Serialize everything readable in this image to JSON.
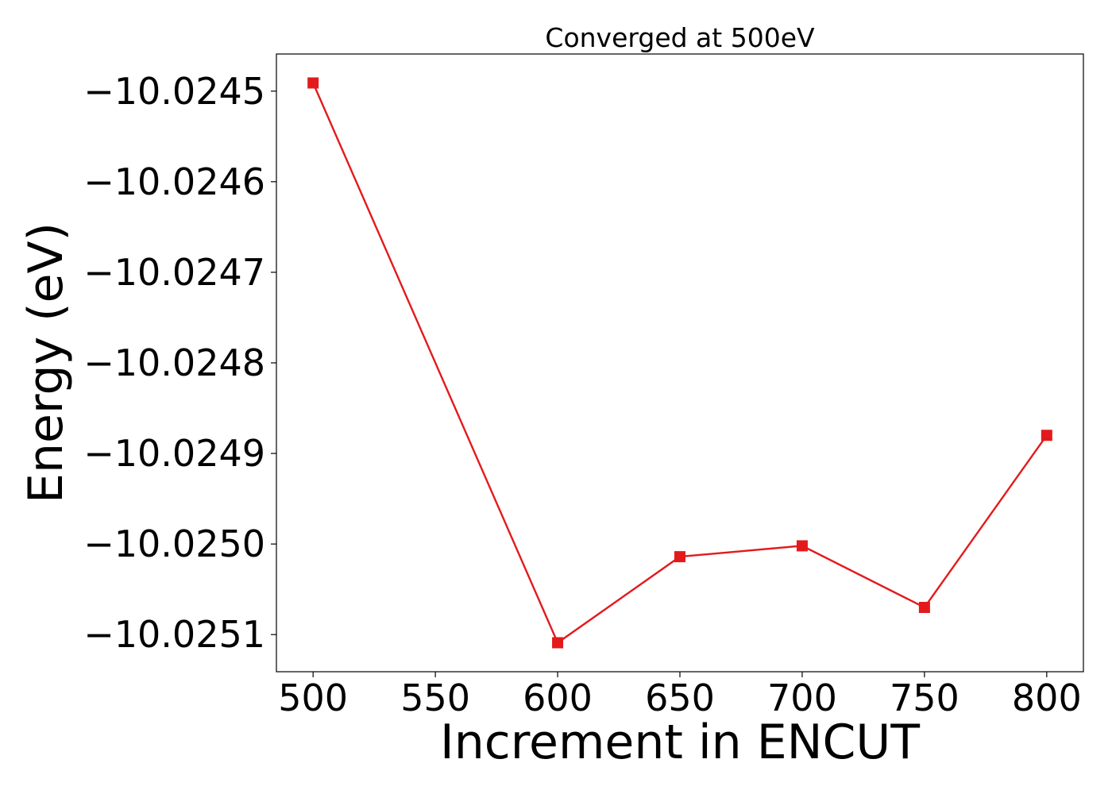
{
  "chart_data": {
    "type": "line",
    "title": "Converged at 500eV",
    "xlabel": "Increment in ENCUT",
    "ylabel": "Energy (eV)",
    "x": [
      500,
      600,
      650,
      700,
      750,
      800
    ],
    "series": [
      {
        "values": [
          -10.024491,
          -10.025109,
          -10.025014,
          -10.025002,
          -10.02507,
          -10.02488
        ],
        "color": "#e31a1c",
        "marker": "square"
      }
    ],
    "xlim": [
      485,
      815
    ],
    "ylim": [
      -10.025141,
      -10.024459
    ],
    "xticks": [
      500,
      550,
      600,
      650,
      700,
      750,
      800
    ],
    "xtick_labels": [
      "500",
      "550",
      "600",
      "650",
      "700",
      "750",
      "800"
    ],
    "yticks": [
      -10.0245,
      -10.0246,
      -10.0247,
      -10.0248,
      -10.0249,
      -10.025,
      -10.0251
    ],
    "ytick_labels": [
      "−10.0245",
      "−10.0246",
      "−10.0247",
      "−10.0248",
      "−10.0249",
      "−10.0250",
      "−10.0251"
    ],
    "grid": false,
    "legend": "none"
  }
}
